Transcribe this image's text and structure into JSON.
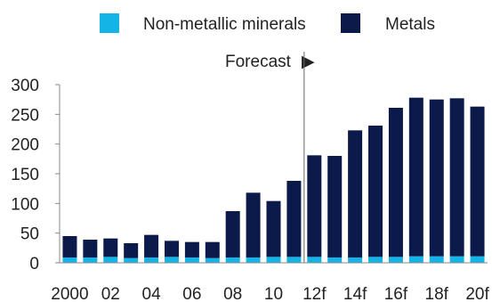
{
  "chart_data": {
    "type": "bar",
    "stacked": true,
    "categories": [
      "2000",
      "01",
      "02",
      "03",
      "04",
      "05",
      "06",
      "07",
      "08",
      "09",
      "10",
      "11",
      "12f",
      "13f",
      "14f",
      "15f",
      "16f",
      "17f",
      "18f",
      "19f",
      "20f"
    ],
    "x_tick_labels": [
      "2000",
      "",
      "02",
      "",
      "04",
      "",
      "06",
      "",
      "08",
      "",
      "10",
      "",
      "12f",
      "",
      "14f",
      "",
      "16f",
      "",
      "18f",
      "",
      "20f"
    ],
    "series": [
      {
        "name": "Non-metallic minerals",
        "color": "#14b4e6",
        "values": [
          9,
          9,
          10,
          8,
          9,
          10,
          9,
          8,
          9,
          9,
          10,
          10,
          10,
          9,
          9,
          10,
          10,
          11,
          11,
          11,
          11
        ]
      },
      {
        "name": "Metals",
        "color": "#0b1a4a",
        "values": [
          36,
          30,
          31,
          25,
          38,
          27,
          26,
          27,
          78,
          109,
          94,
          128,
          171,
          171,
          214,
          221,
          251,
          267,
          264,
          266,
          252
        ]
      }
    ],
    "ylim": [
      0,
      300
    ],
    "yticks": [
      0,
      50,
      100,
      150,
      200,
      250,
      300
    ],
    "forecast_label": "Forecast",
    "forecast_marker": "▶",
    "forecast_start_index": 12,
    "legend_position": "top",
    "grid": false,
    "title": "",
    "xlabel": "",
    "ylabel": ""
  }
}
